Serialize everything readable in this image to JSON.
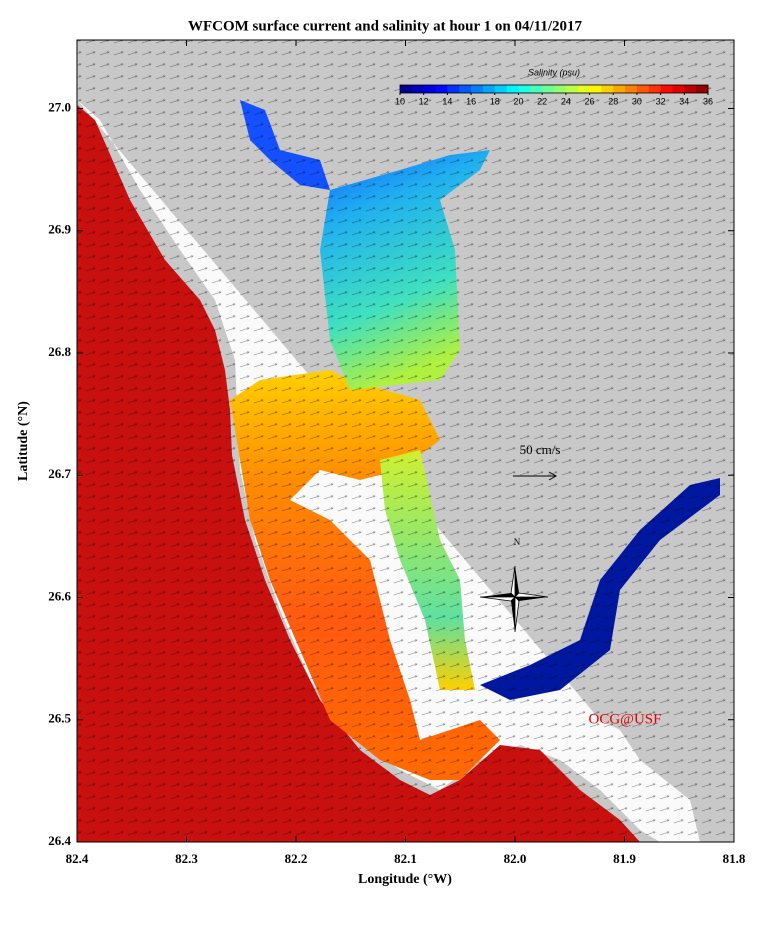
{
  "header": {
    "title": "WFCOM surface current and salinity at hour 1 on 04/11/2017"
  },
  "map": {
    "xlim": [
      82.4,
      81.8
    ],
    "ylim": [
      26.4,
      27.056
    ],
    "xticks": [
      82.4,
      82.3,
      82.2,
      82.1,
      {
        "value": 82.0,
        "label": "82.0"
      },
      81.9,
      81.8
    ],
    "yticks": [
      26.4,
      26.5,
      26.6,
      26.7,
      26.8,
      26.9,
      {
        "value": 27.0,
        "label": "27.0"
      }
    ],
    "x_label": "Longitude (°W)",
    "y_label": "Latitude (°N)"
  },
  "colorbar": {
    "label": "Salinity (psu)",
    "range": [
      10,
      36
    ],
    "ticks": [
      10,
      12,
      14,
      16,
      18,
      20,
      22,
      24,
      26,
      28,
      30,
      32,
      34,
      36
    ]
  },
  "annotations": {
    "scale": "50 cm/s",
    "north": "N",
    "credit": "OCG@USF"
  }
}
